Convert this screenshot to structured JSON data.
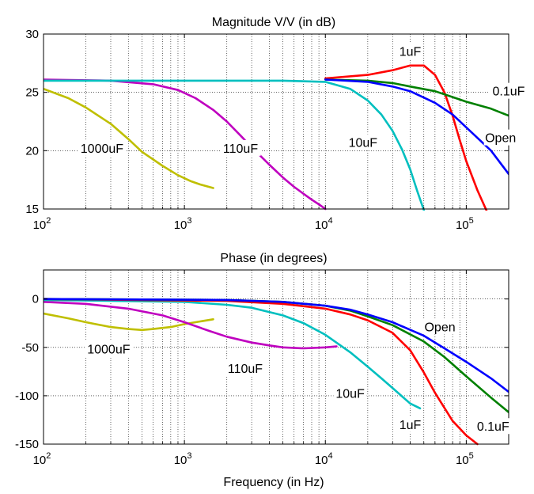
{
  "chart_data": [
    {
      "type": "line",
      "title": "Magnitude V/V (in dB)",
      "xlabel": "",
      "ylabel": "",
      "xscale": "log",
      "xlim": [
        100,
        200000
      ],
      "ylim": [
        15,
        30
      ],
      "yticks": [
        15,
        20,
        25,
        30
      ],
      "xticks": [
        {
          "base": "10",
          "exp": "2"
        },
        {
          "base": "10",
          "exp": "3"
        },
        {
          "base": "10",
          "exp": "4"
        },
        {
          "base": "10",
          "exp": "5"
        }
      ],
      "grid": true,
      "series": [
        {
          "name": "1000uF",
          "color": "#bfbf00",
          "x": [
            100,
            150,
            200,
            300,
            400,
            500,
            700,
            900,
            1100,
            1300,
            1600
          ],
          "y": [
            25.3,
            24.5,
            23.7,
            22.3,
            21.0,
            19.9,
            18.7,
            17.9,
            17.4,
            17.1,
            16.8
          ]
        },
        {
          "name": "110uF",
          "color": "#bf00bf",
          "x": [
            100,
            300,
            600,
            900,
            1200,
            1600,
            2000,
            2500,
            3000,
            4000,
            5000,
            6000,
            7000,
            8000,
            9000,
            10000
          ],
          "y": [
            26.1,
            26.0,
            25.7,
            25.2,
            24.5,
            23.5,
            22.5,
            21.3,
            20.3,
            18.8,
            17.7,
            16.9,
            16.3,
            15.8,
            15.4,
            15.0
          ]
        },
        {
          "name": "10uF",
          "color": "#00bfbf",
          "x": [
            100,
            1000,
            5000,
            10000,
            15000,
            20000,
            25000,
            30000,
            35000,
            40000,
            45000,
            50000
          ],
          "y": [
            26.0,
            26.0,
            26.0,
            25.9,
            25.3,
            24.3,
            23.1,
            21.7,
            20.1,
            18.4,
            16.5,
            14.9
          ]
        },
        {
          "name": "1uF",
          "color": "#ff0000",
          "x": [
            10000,
            20000,
            30000,
            40000,
            50000,
            60000,
            70000,
            80000,
            90000,
            100000,
            120000,
            140000
          ],
          "y": [
            26.2,
            26.5,
            26.9,
            27.3,
            27.3,
            26.5,
            25.0,
            23.0,
            20.9,
            19.1,
            16.6,
            14.8
          ]
        },
        {
          "name": "0.1uF",
          "color": "#008000",
          "x": [
            10000,
            20000,
            30000,
            40000,
            60000,
            80000,
            100000,
            150000,
            200000
          ],
          "y": [
            26.1,
            26.0,
            25.8,
            25.5,
            25.1,
            24.6,
            24.2,
            23.6,
            23.0
          ]
        },
        {
          "name": "Open",
          "color": "#0000ff",
          "x": [
            10000,
            20000,
            30000,
            40000,
            60000,
            80000,
            100000,
            150000,
            200000
          ],
          "y": [
            26.1,
            25.9,
            25.5,
            25.1,
            24.1,
            23.1,
            22.0,
            20.0,
            18.0
          ]
        }
      ],
      "annotations": [
        {
          "text": "1000uF",
          "x": 260,
          "y": 20.1
        },
        {
          "text": "110uF",
          "x": 2500,
          "y": 20.1
        },
        {
          "text": "10uF",
          "x": 18500,
          "y": 20.6
        },
        {
          "text": "1uF",
          "x": 40000,
          "y": 28.4
        },
        {
          "text": "0.1uF",
          "x": 200000,
          "y": 25.0
        },
        {
          "text": "Open",
          "x": 175000,
          "y": 21.0
        }
      ]
    },
    {
      "type": "line",
      "title": "Phase (in degrees)",
      "xlabel": "Frequency (in Hz)",
      "ylabel": "",
      "xscale": "log",
      "xlim": [
        100,
        200000
      ],
      "ylim": [
        -150,
        30
      ],
      "yticks": [
        -150,
        -100,
        -50,
        0
      ],
      "xticks": [
        {
          "base": "10",
          "exp": "2"
        },
        {
          "base": "10",
          "exp": "3"
        },
        {
          "base": "10",
          "exp": "4"
        },
        {
          "base": "10",
          "exp": "5"
        }
      ],
      "grid": true,
      "series": [
        {
          "name": "1000uF",
          "color": "#bfbf00",
          "x": [
            100,
            150,
            200,
            300,
            400,
            500,
            600,
            800,
            1000,
            1200,
            1600
          ],
          "y": [
            -15,
            -20,
            -24,
            -29,
            -31,
            -32,
            -31,
            -29,
            -26,
            -24,
            -21
          ]
        },
        {
          "name": "110uF",
          "color": "#bf00bf",
          "x": [
            100,
            200,
            400,
            700,
            1000,
            1500,
            2000,
            3000,
            4000,
            5000,
            7000,
            10000,
            12000
          ],
          "y": [
            -3,
            -5,
            -10,
            -17,
            -24,
            -33,
            -39,
            -45,
            -48,
            -50,
            -51,
            -50,
            -49
          ]
        },
        {
          "name": "10uF",
          "color": "#00bfbf",
          "x": [
            100,
            1000,
            2000,
            3000,
            5000,
            7000,
            10000,
            15000,
            20000,
            25000,
            30000,
            40000,
            47000
          ],
          "y": [
            -1,
            -3,
            -6,
            -9,
            -17,
            -25,
            -37,
            -55,
            -70,
            -82,
            -92,
            -108,
            -113
          ]
        },
        {
          "name": "1uF",
          "color": "#ff0000",
          "x": [
            100,
            2000,
            5000,
            10000,
            15000,
            20000,
            30000,
            40000,
            50000,
            60000,
            80000,
            100000,
            120000
          ],
          "y": [
            0,
            -2,
            -5,
            -10,
            -16,
            -22,
            -35,
            -53,
            -76,
            -97,
            -126,
            -141,
            -150
          ]
        },
        {
          "name": "0.1uF",
          "color": "#008000",
          "x": [
            100,
            2000,
            5000,
            10000,
            15000,
            20000,
            30000,
            50000,
            70000,
            100000,
            150000,
            200000
          ],
          "y": [
            0,
            -1,
            -3,
            -7,
            -12,
            -18,
            -27,
            -44,
            -60,
            -80,
            -102,
            -117
          ]
        },
        {
          "name": "Open",
          "color": "#0000ff",
          "x": [
            100,
            2000,
            5000,
            10000,
            15000,
            20000,
            30000,
            50000,
            70000,
            100000,
            150000,
            200000
          ],
          "y": [
            0,
            -1,
            -3,
            -7,
            -11,
            -16,
            -24,
            -38,
            -51,
            -65,
            -82,
            -96
          ]
        }
      ],
      "annotations": [
        {
          "text": "1000uF",
          "x": 290,
          "y": -53
        },
        {
          "text": "110uF",
          "x": 2700,
          "y": -73
        },
        {
          "text": "10uF",
          "x": 15000,
          "y": -99
        },
        {
          "text": "1uF",
          "x": 40000,
          "y": -131
        },
        {
          "text": "0.1uF",
          "x": 155000,
          "y": -133
        },
        {
          "text": "Open",
          "x": 65000,
          "y": -30
        }
      ]
    }
  ]
}
